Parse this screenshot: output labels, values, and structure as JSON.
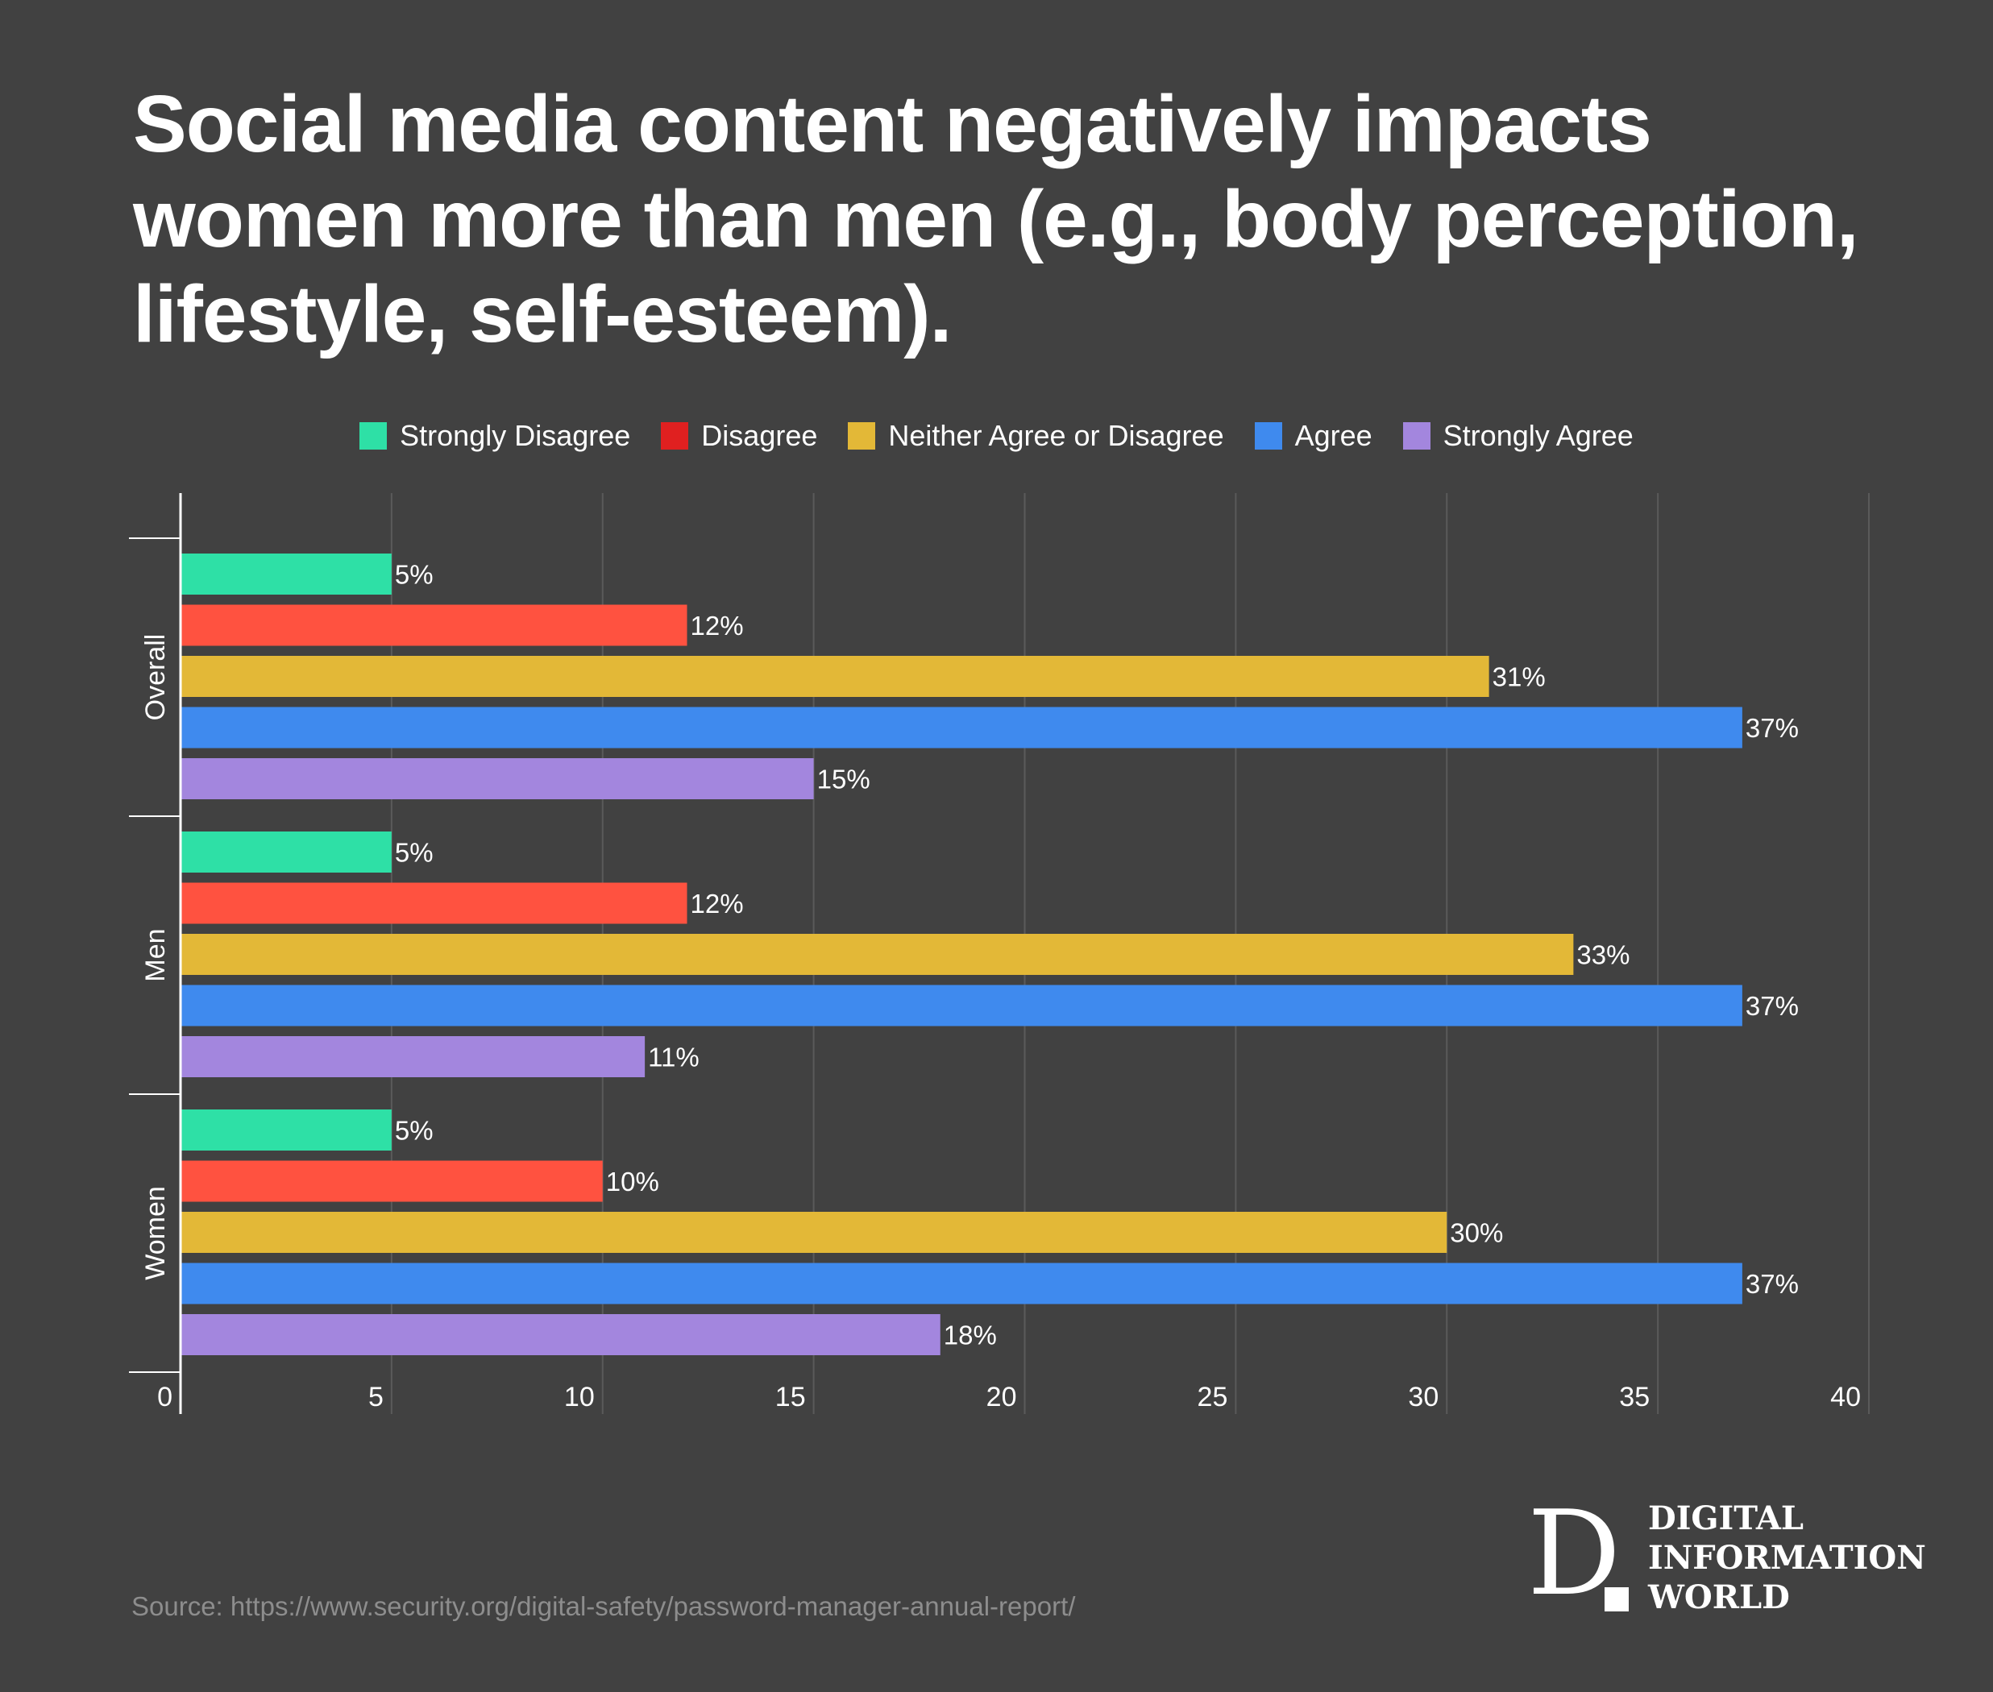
{
  "title": "Social media content negatively impacts women more than men (e.g., body perception, lifestyle, self-esteem).",
  "source": "Source: https://www.security.org/digital-safety/password-manager-annual-report/",
  "brand": {
    "logo_letter": "D",
    "line1": "DIGITAL",
    "line2": "INFORMATION",
    "line3": "WORLD"
  },
  "legend": [
    {
      "label": "Strongly Disagree",
      "color": "#2ee0a6"
    },
    {
      "label": "Disagree",
      "color": "#e02020"
    },
    {
      "label": "Neither Agree or Disagree",
      "color": "#e3b837"
    },
    {
      "label": "Agree",
      "color": "#3f8aee"
    },
    {
      "label": "Strongly Agree",
      "color": "#a386de"
    }
  ],
  "chart_data": {
    "type": "bar",
    "orientation": "horizontal",
    "categories": [
      "Overall",
      "Men",
      "Women"
    ],
    "series": [
      {
        "name": "Strongly Disagree",
        "color": "#2ee0a6",
        "values": [
          5,
          5,
          5
        ],
        "labels": [
          "5%",
          "5%",
          "5%"
        ]
      },
      {
        "name": "Disagree",
        "color": "#ff5240",
        "values": [
          12,
          12,
          10
        ],
        "labels": [
          "12%",
          "12%",
          "10%"
        ]
      },
      {
        "name": "Neither Agree or Disagree",
        "color": "#e3b837",
        "values": [
          31,
          33,
          30
        ],
        "labels": [
          "31%",
          "33%",
          "30%"
        ]
      },
      {
        "name": "Agree",
        "color": "#3f8aee",
        "values": [
          37,
          37,
          37
        ],
        "labels": [
          "37%",
          "37%",
          "37%"
        ]
      },
      {
        "name": "Strongly Agree",
        "color": "#a386de",
        "values": [
          15,
          11,
          18
        ],
        "labels": [
          "15%",
          "11%",
          "18%"
        ]
      }
    ],
    "xlim": [
      0,
      40
    ],
    "xticks": [
      0,
      5,
      10,
      15,
      20,
      25,
      30,
      35,
      40
    ],
    "grid": true,
    "legend_position": "top-center"
  }
}
